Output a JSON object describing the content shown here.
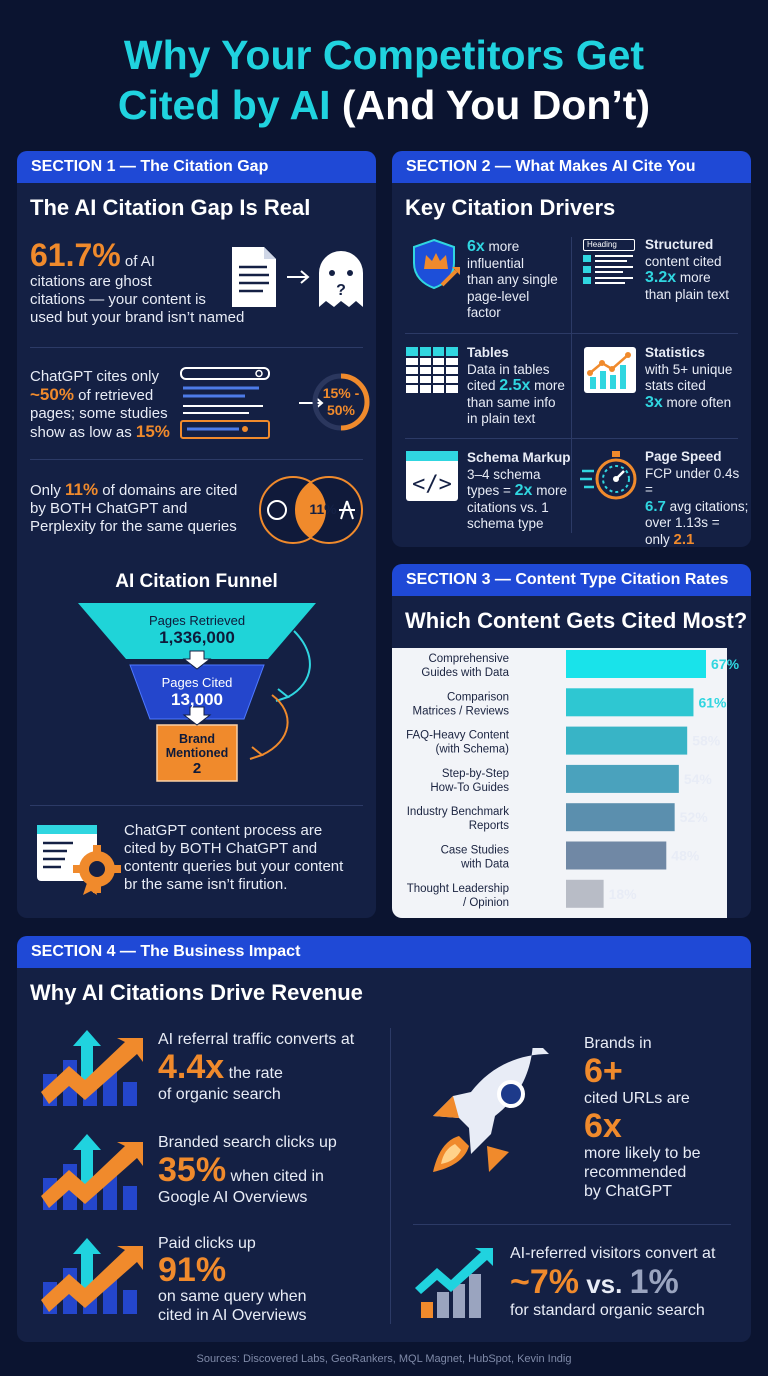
{
  "title": {
    "line1": "Why Your Competitors Get",
    "line2a": "Cited by AI",
    "line2b": " (And You Don’t)"
  },
  "s1": {
    "header": "SECTION 1 — The Citation Gap",
    "heading": "The AI Citation Gap Is Real",
    "stat1": {
      "big": "61.7%",
      "t1": " of AI",
      "t2": "citations are ghost",
      "t3": "citations — your content is",
      "t4": "used but your brand isn’t named"
    },
    "stat2": {
      "t1": "ChatGPT cites only",
      "big": "~50%",
      "t2": " of retrieved",
      "t3": "pages; some studies",
      "t4": "show as low as ",
      "big2": "15%",
      "ring": "15% -",
      "ring2": "50%"
    },
    "stat3": {
      "t1": "Only ",
      "big": "11%",
      "t2": " of domains are cited",
      "t3": "by BOTH ChatGPT and",
      "t4": "Perplexity for the same queries",
      "venn": "11%"
    },
    "funnel": {
      "title": "AI Citation Funnel",
      "l1a": "Pages Retrieved",
      "l1b": "1,336,000",
      "l2a": "Pages Cited",
      "l2b": "13,000",
      "l3a": "Brand",
      "l3b": "Mentioned",
      "l3c": "2"
    },
    "foot": {
      "t1": "ChatGPT content process are",
      "t2": "cited  by BOTH ChatGPT and",
      "t3": "contentr queries but your content",
      "t4": "br the same isn’t firution."
    }
  },
  "s2": {
    "header": "SECTION 2 — What Makes AI Cite You",
    "heading": "Key Citation Drivers",
    "d1": {
      "big": "6x",
      "t1": " more",
      "t2": "influential",
      "t3": "than any single",
      "t4": "page-level",
      "t5": "factor"
    },
    "d2": {
      "label": "Heading",
      "t1": "Structured",
      "t2": "content cited",
      "big": "3.2x",
      "t3": " more",
      "t4": "than plain text"
    },
    "d3": {
      "t1": "Tables",
      "t2": "Data in tables",
      "t3": "cited ",
      "big": "2.5x",
      "t4": " more",
      "t5": "than same info",
      "t6": "in plain text"
    },
    "d4": {
      "t1": "Statistics",
      "t2": "with 5+ unique",
      "t3": "stats cited",
      "big": "3x",
      "t4": " more often"
    },
    "d5": {
      "t1": "Schema Markup",
      "t2": "3–4 schema",
      "t3": "types = ",
      "big": "2x",
      "t4": " more",
      "t5": "citations vs. 1",
      "t6": "schema type"
    },
    "d6": {
      "t1": "Page Speed",
      "t2": "FCP under 0.4s =",
      "big": "6.7",
      "t3": " avg citations;",
      "t4": "over 1.13s =",
      "t5": "only ",
      "big2": "2.1"
    }
  },
  "s3": {
    "header": "SECTION 3 — Content Type Citation Rates",
    "heading": "Which Content Gets Cited Most?"
  },
  "chart_data": {
    "type": "bar",
    "categories": [
      "Comprehensive Guides with Data",
      "Comparison Matrices / Reviews",
      "FAQ-Heavy Content (with Schema)",
      "Step-by-Step How-To Guides",
      "Industry Benchmark Reports",
      "Case Studies with Data",
      "Thought Leadership / Opinion"
    ],
    "label_lines": [
      [
        "Comprehensive",
        "Guides with Data"
      ],
      [
        "Comparison",
        "Matrices / Reviews"
      ],
      [
        "FAQ-Heavy Content",
        "(with Schema)"
      ],
      [
        "Step-by-Step",
        "How-To Guides"
      ],
      [
        "Industry Benchmark",
        "Reports"
      ],
      [
        "Case Studies",
        "with Data"
      ],
      [
        "Thought Leadership",
        "/ Opinion"
      ]
    ],
    "values": [
      67,
      61,
      58,
      54,
      52,
      48,
      18
    ],
    "value_labels": [
      "67%",
      "61%",
      "58%",
      "54%",
      "52%",
      "48%",
      "18%"
    ],
    "colors": [
      "#19e3ea",
      "#2ec7d2",
      "#38b4c6",
      "#4aa2bd",
      "#5b8fae",
      "#7088a5",
      "#b8bcc6"
    ],
    "title": "Which Content Gets Cited Most?",
    "xlim": [
      0,
      67
    ]
  },
  "s4": {
    "header": "SECTION 4 — The Business Impact",
    "heading": "Why AI Citations Drive Revenue",
    "i1": {
      "t1": "AI referral traffic converts at",
      "big": "4.4x",
      "t2": " the rate",
      "t3": "of organic search"
    },
    "i2": {
      "t1": "Branded search clicks up",
      "big": "35%",
      "t2": " when cited in",
      "t3": "Google AI Overviews"
    },
    "i3": {
      "t1": "Paid clicks up",
      "big": "91%",
      "t2": "on same query when",
      "t3": "cited in AI Overviews"
    },
    "r1": {
      "t1": "Brands in",
      "big": "6+",
      "t2": "cited URLs are",
      "big2": "6x",
      "t3": "more likely to be",
      "t4": "recommended",
      "t5": "by ChatGPT"
    },
    "r2": {
      "t1": "AI-referred visitors convert at",
      "big": "~7%",
      "mid": " vs. ",
      "big2": "1%",
      "t2": "for standard organic search"
    }
  },
  "sources": "Sources: Discovered Labs, GeoRankers, MQL Magnet, HubSpot, Kevin Indig"
}
